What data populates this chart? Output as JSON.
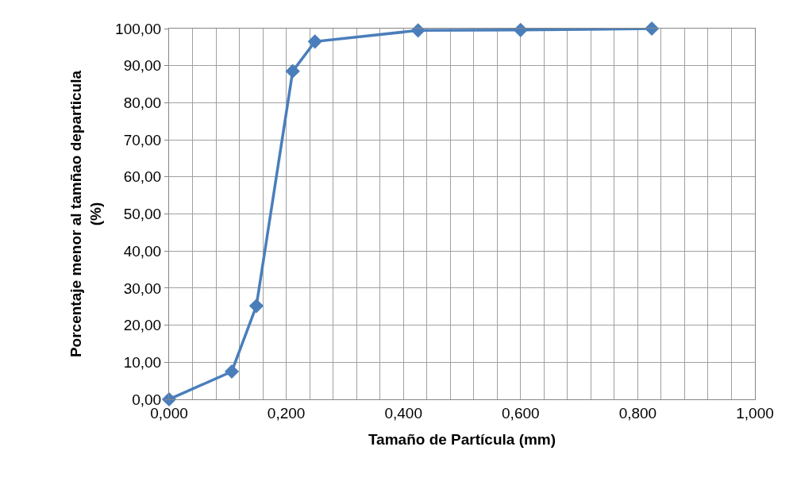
{
  "chart_data": {
    "type": "line",
    "xlabel": "Tamaño de Partícula (mm)",
    "ylabel": "Porcentaje menor al tamñao departicula\n(%)",
    "x": [
      0.0,
      0.107,
      0.149,
      0.211,
      0.249,
      0.425,
      0.6,
      0.824
    ],
    "series": [
      {
        "color": "#4a7ebb",
        "values": [
          0.0,
          7.5,
          25.2,
          88.5,
          96.5,
          99.5,
          99.6,
          100.0
        ]
      }
    ],
    "xlim": [
      0,
      1
    ],
    "xticks": [
      {
        "value": 0,
        "label": "0,000"
      },
      {
        "value": 0.04,
        "label": null
      },
      {
        "value": 0.08,
        "label": null
      },
      {
        "value": 0.12,
        "label": null
      },
      {
        "value": 0.16,
        "label": null
      },
      {
        "value": 0.2,
        "label": "0,200"
      },
      {
        "value": 0.24,
        "label": null
      },
      {
        "value": 0.28,
        "label": null
      },
      {
        "value": 0.32,
        "label": null
      },
      {
        "value": 0.36,
        "label": null
      },
      {
        "value": 0.4,
        "label": "0,400"
      },
      {
        "value": 0.44,
        "label": null
      },
      {
        "value": 0.48,
        "label": null
      },
      {
        "value": 0.52,
        "label": null
      },
      {
        "value": 0.56,
        "label": null
      },
      {
        "value": 0.6,
        "label": "0,600"
      },
      {
        "value": 0.64,
        "label": null
      },
      {
        "value": 0.68,
        "label": null
      },
      {
        "value": 0.72,
        "label": null
      },
      {
        "value": 0.76,
        "label": null
      },
      {
        "value": 0.8,
        "label": "0,800"
      },
      {
        "value": 0.84,
        "label": null
      },
      {
        "value": 0.88,
        "label": null
      },
      {
        "value": 0.92,
        "label": null
      },
      {
        "value": 0.96,
        "label": null
      },
      {
        "value": 1,
        "label": "1,000"
      }
    ],
    "ylim": [
      0,
      100
    ],
    "yticks": [
      {
        "value": 0,
        "label": "0,00"
      },
      {
        "value": 10,
        "label": "10,00"
      },
      {
        "value": 20,
        "label": "20,00"
      },
      {
        "value": 30,
        "label": "30,00"
      },
      {
        "value": 40,
        "label": "40,00"
      },
      {
        "value": 50,
        "label": "50,00"
      },
      {
        "value": 60,
        "label": "60,00"
      },
      {
        "value": 70,
        "label": "70,00"
      },
      {
        "value": 80,
        "label": "80,00"
      },
      {
        "value": 90,
        "label": "90,00"
      },
      {
        "value": 100,
        "label": "100,00"
      }
    ],
    "grid": true,
    "legend": false,
    "marker": "diamond",
    "line_style": "solid"
  }
}
